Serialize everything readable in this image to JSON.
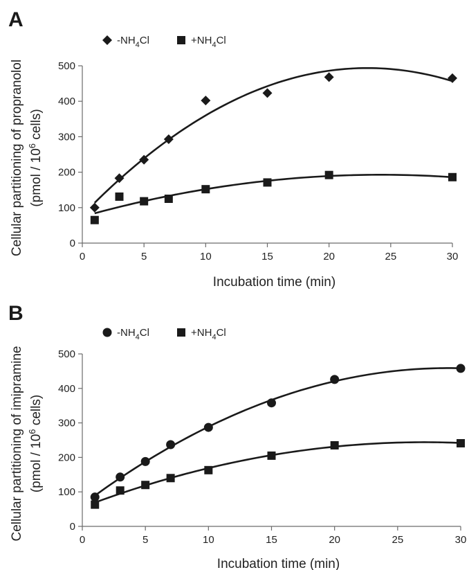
{
  "chart_data": [
    {
      "panel": "A",
      "type": "scatter",
      "xlabel": "Incubation time (min)",
      "ylabel_line1": "Cellular partitioning of propranolol",
      "ylabel_line2_pre": "(pmol / 10",
      "ylabel_line2_sup": "6",
      "ylabel_line2_post": " cells)",
      "xlim": [
        0,
        30
      ],
      "ylim": [
        0,
        500
      ],
      "xticks": [
        "0",
        "5",
        "10",
        "15",
        "20",
        "25",
        "30"
      ],
      "yticks": [
        "0",
        "100",
        "200",
        "300",
        "400",
        "500"
      ],
      "series": [
        {
          "name_pre": "-NH",
          "name_sub": "4",
          "name_post": "Cl",
          "marker": "diamond",
          "x": [
            1,
            3,
            5,
            7,
            10,
            15,
            20,
            30
          ],
          "y": [
            100,
            183,
            235,
            293,
            402,
            423,
            468,
            465
          ],
          "fit": [
            1,
            30
          ]
        },
        {
          "name_pre": "+NH",
          "name_sub": "4",
          "name_post": "Cl",
          "marker": "square",
          "x": [
            1,
            3,
            5,
            7,
            10,
            15,
            20,
            30
          ],
          "y": [
            65,
            131,
            118,
            125,
            152,
            171,
            192,
            186
          ],
          "fit": [
            1,
            30
          ]
        }
      ]
    },
    {
      "panel": "B",
      "type": "scatter",
      "xlabel": "Incubation time (min)",
      "ylabel_line1": "Cellular partitioning of imipramine",
      "ylabel_line2_pre": "(pmol / 10",
      "ylabel_line2_sup": "6",
      "ylabel_line2_post": " cells)",
      "xlim": [
        0,
        30
      ],
      "ylim": [
        0,
        500
      ],
      "xticks": [
        "0",
        "5",
        "10",
        "15",
        "20",
        "25",
        "30"
      ],
      "yticks": [
        "0",
        "100",
        "200",
        "300",
        "400",
        "500"
      ],
      "series": [
        {
          "name_pre": "-NH",
          "name_sub": "4",
          "name_post": "Cl",
          "marker": "circle",
          "x": [
            1,
            3,
            5,
            7,
            10,
            15,
            20,
            30
          ],
          "y": [
            85,
            143,
            188,
            237,
            287,
            358,
            426,
            458
          ],
          "fit": [
            1,
            30
          ]
        },
        {
          "name_pre": "+NH",
          "name_sub": "4",
          "name_post": "Cl",
          "marker": "square",
          "x": [
            1,
            3,
            5,
            7,
            10,
            15,
            20,
            30
          ],
          "y": [
            63,
            104,
            120,
            140,
            163,
            205,
            235,
            241
          ],
          "fit": [
            1,
            30
          ]
        }
      ]
    }
  ]
}
